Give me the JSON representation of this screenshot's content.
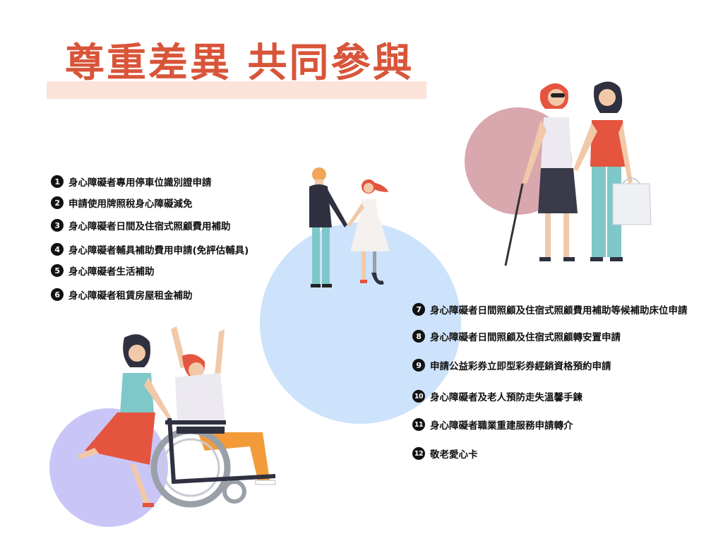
{
  "title": "尊重差異  共同參與",
  "colors": {
    "title": "#d8553a",
    "title_band": "#fbe3da",
    "circle_blue": "#cde2fb",
    "circle_rose": "#d9a7ae",
    "circle_lavender": "#c9c6f7"
  },
  "items": [
    {
      "num": "1",
      "label": "身心障礙者專用停車位識別證申請"
    },
    {
      "num": "2",
      "label": "申請使用牌照稅身心障礙減免"
    },
    {
      "num": "3",
      "label": "身心障礙者日間及住宿式照顧費用補助"
    },
    {
      "num": "4",
      "label": "身心障礙者輔具補助費用申請(免評估輔具)"
    },
    {
      "num": "5",
      "label": "身心障礙者生活補助"
    },
    {
      "num": "6",
      "label": "身心障礙者租賃房屋租金補助"
    },
    {
      "num": "7",
      "label": "身心障礙者日間照顧及住宿式照顧費用補助等候補助床位申請"
    },
    {
      "num": "8",
      "label": "身心障礙者日間照顧及住宿式照顧轉安置申請"
    },
    {
      "num": "9",
      "label": "申請公益彩券立即型彩券經銷資格預約申請"
    },
    {
      "num": "10",
      "label": "身心障礙者及老人預防走失溫馨手鍊"
    },
    {
      "num": "11",
      "label": "身心障礙者職業重建服務申請轉介"
    },
    {
      "num": "12",
      "label": "敬老愛心卡"
    }
  ],
  "illustrations": [
    {
      "name": "couple-walking",
      "icon": "people-holding-hands-illustration"
    },
    {
      "name": "guide-walk",
      "icon": "blind-woman-with-guide-illustration"
    },
    {
      "name": "wheelchair",
      "icon": "wheelchair-user-illustration"
    }
  ]
}
